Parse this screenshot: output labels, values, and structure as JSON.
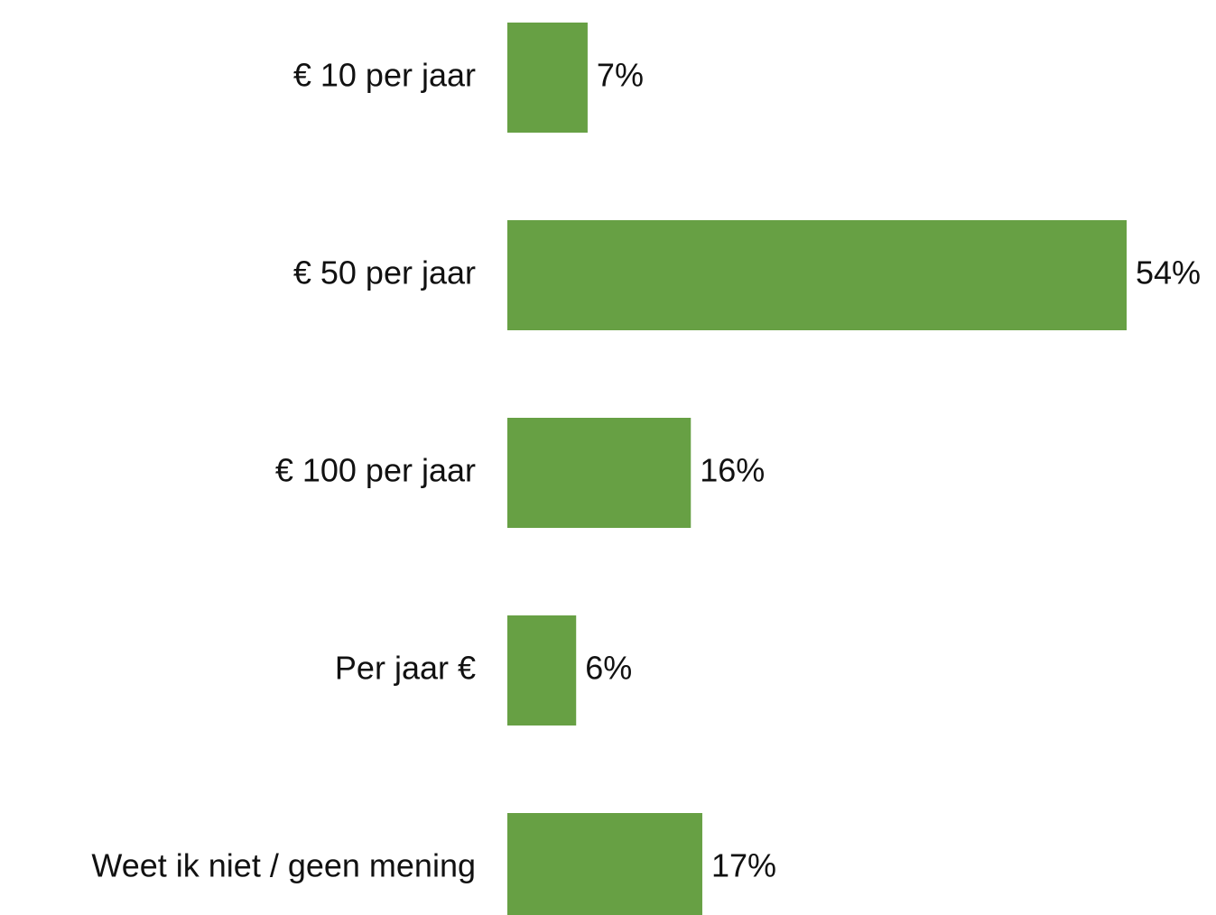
{
  "chart_data": {
    "type": "barh",
    "categories": [
      "€ 10 per jaar",
      "€ 50 per jaar",
      "€ 100 per jaar",
      "Per jaar €",
      "Weet ik niet / geen mening"
    ],
    "values": [
      7,
      54,
      16,
      6,
      17
    ],
    "value_labels": [
      "7%",
      "54%",
      "16%",
      "6%",
      "17%"
    ],
    "color": "#67a044"
  }
}
